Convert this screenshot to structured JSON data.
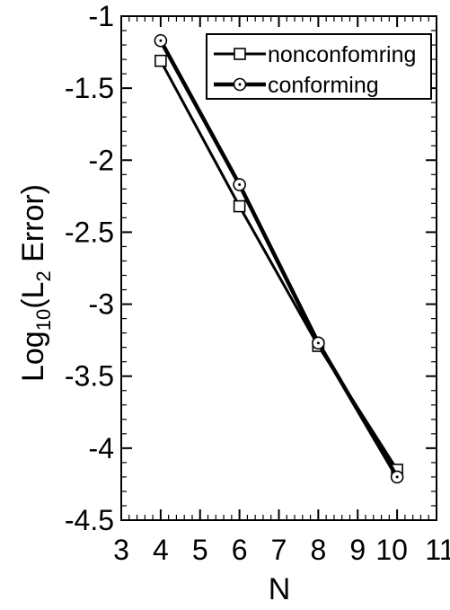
{
  "chart_data": {
    "type": "line",
    "xlabel": "N",
    "ylabel": {
      "prefix": "Log",
      "base_subscript": "10",
      "open": "(L",
      "norm_subscript": "2",
      "rest": " Error)"
    },
    "xlim": [
      3,
      11
    ],
    "ylim": [
      -4.5,
      -1
    ],
    "xticks": [
      3,
      4,
      5,
      6,
      7,
      8,
      9,
      10,
      11
    ],
    "xtick_labels": [
      "3",
      "4",
      "5",
      "6",
      "7",
      "8",
      "9",
      "10",
      "11"
    ],
    "yticks": [
      -1,
      -1.5,
      -2,
      -2.5,
      -3,
      -3.5,
      -4,
      -4.5
    ],
    "ytick_labels": [
      "-1",
      "-1.5",
      "-2",
      "-2.5",
      "-3",
      "-3.5",
      "-4",
      "-4.5"
    ],
    "grid": false,
    "legend_position": "top-right",
    "series": [
      {
        "name": "nonconfomring",
        "marker": "square",
        "color": "#000000",
        "x": [
          4,
          6,
          8,
          10
        ],
        "y": [
          -1.31,
          -2.32,
          -3.29,
          -4.15
        ]
      },
      {
        "name": "conforming",
        "marker": "circle-dot",
        "color": "#000000",
        "x": [
          4,
          6,
          8,
          10
        ],
        "y": [
          -1.17,
          -2.17,
          -3.27,
          -4.2
        ]
      }
    ]
  }
}
